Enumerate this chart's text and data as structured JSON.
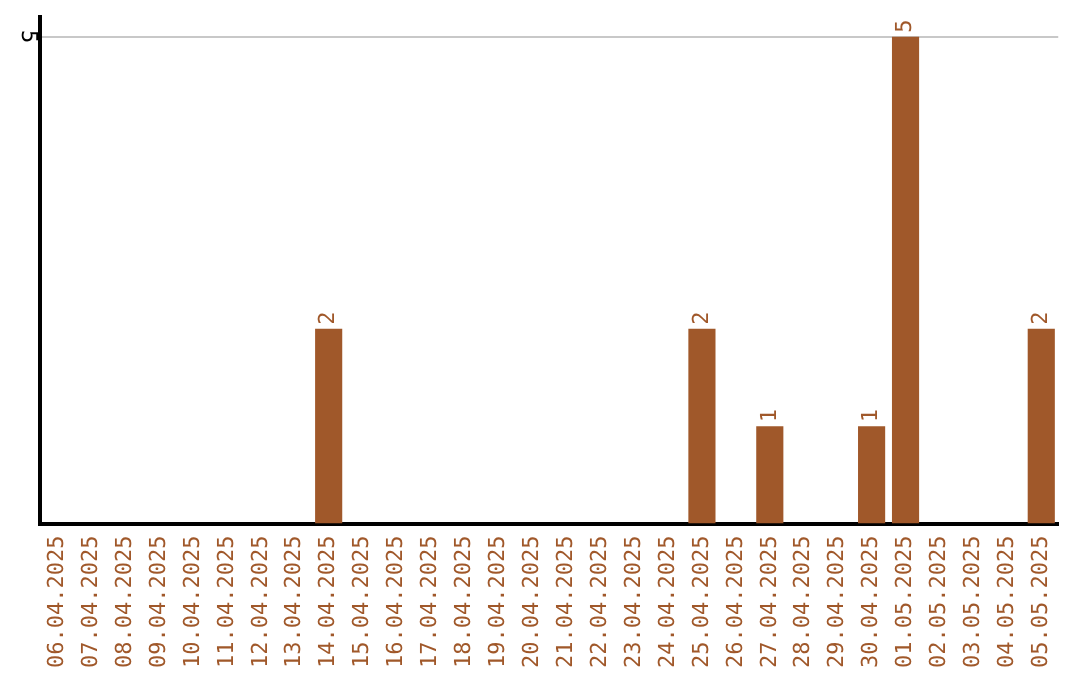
{
  "chart_data": {
    "type": "bar",
    "categories": [
      "06.04.2025",
      "07.04.2025",
      "08.04.2025",
      "09.04.2025",
      "10.04.2025",
      "11.04.2025",
      "12.04.2025",
      "13.04.2025",
      "14.04.2025",
      "15.04.2025",
      "16.04.2025",
      "17.04.2025",
      "18.04.2025",
      "19.04.2025",
      "20.04.2025",
      "21.04.2025",
      "22.04.2025",
      "23.04.2025",
      "24.04.2025",
      "25.04.2025",
      "26.04.2025",
      "27.04.2025",
      "28.04.2025",
      "29.04.2025",
      "30.04.2025",
      "01.05.2025",
      "02.05.2025",
      "03.05.2025",
      "04.05.2025",
      "05.05.2025"
    ],
    "values": [
      0,
      0,
      0,
      0,
      0,
      0,
      0,
      0,
      2,
      0,
      0,
      0,
      0,
      0,
      0,
      0,
      0,
      0,
      0,
      2,
      0,
      1,
      0,
      0,
      1,
      5,
      0,
      0,
      0,
      2
    ],
    "value_labels": [
      null,
      null,
      null,
      null,
      null,
      null,
      null,
      null,
      "2",
      null,
      null,
      null,
      null,
      null,
      null,
      null,
      null,
      null,
      null,
      "2",
      null,
      "1",
      null,
      null,
      "1",
      "5",
      null,
      null,
      null,
      "2"
    ],
    "color": "#a0582a",
    "ylim": [
      0,
      5.2
    ],
    "yticks": [
      5
    ],
    "grid": "y",
    "legend": false
  }
}
